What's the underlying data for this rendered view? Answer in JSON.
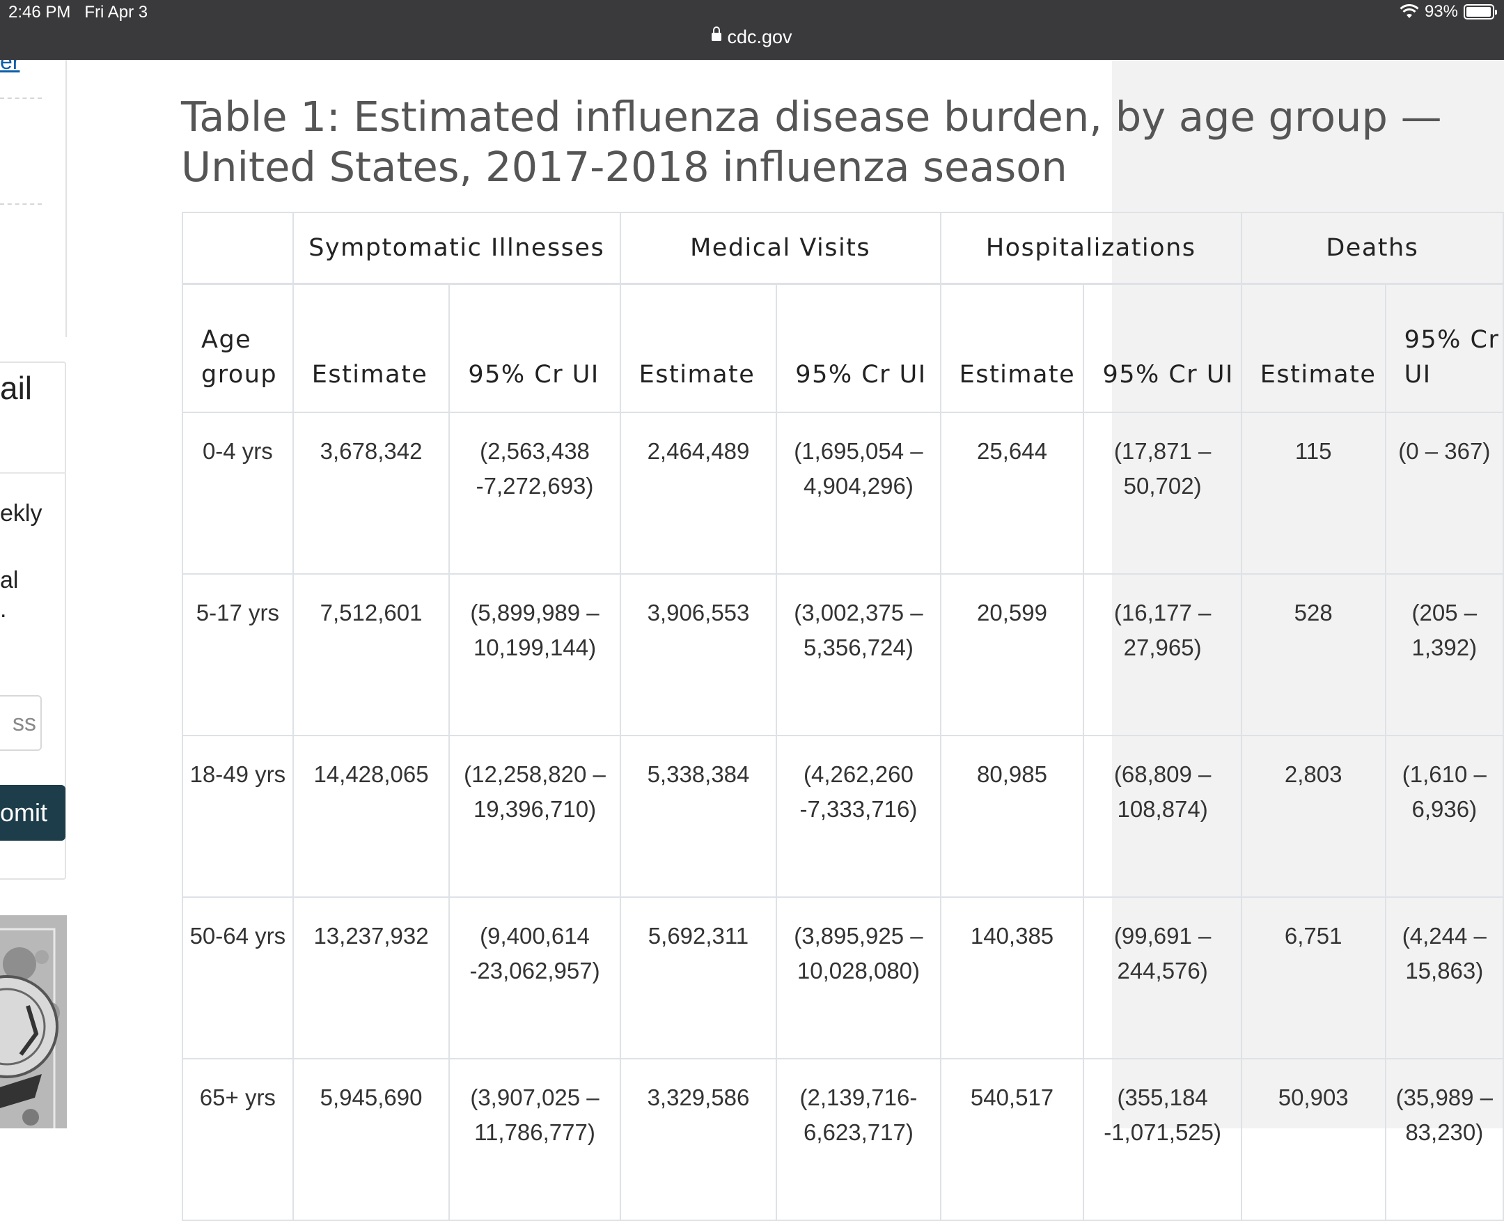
{
  "status_bar": {
    "time": "2:46 PM",
    "date": "Fri Apr 3",
    "battery": "93%",
    "battery_level": 0.93
  },
  "browser": {
    "url": "cdc.gov"
  },
  "sidebar": {
    "link_fragment": "er",
    "email_title_fragment": "ail",
    "text_fragment_1": "ekly",
    "text_fragment_2": "al",
    "text_fragment_3": ".",
    "email_placeholder_fragment": "ss",
    "submit_fragment": "omit"
  },
  "page": {
    "title": "Table 1: Estimated influenza disease burden, by age group — United States, 2017-2018 influenza season"
  },
  "table": {
    "groups": [
      "Symptomatic Illnesses",
      "Medical Visits",
      "Hospitalizations",
      "Deaths"
    ],
    "subheaders": [
      "Age group",
      "Estimate",
      "95% Cr UI",
      "Estimate",
      "95% Cr UI",
      "Estimate",
      "95% Cr UI",
      "Estimate",
      "95% Cr UI"
    ],
    "rows": [
      [
        "0-4 yrs",
        "3,678,342",
        "(2,563,438 -7,272,693)",
        "2,464,489",
        "(1,695,054 – 4,904,296)",
        "25,644",
        "(17,871 – 50,702)",
        "115",
        "(0 – 367)"
      ],
      [
        "5-17 yrs",
        "7,512,601",
        "(5,899,989 – 10,199,144)",
        "3,906,553",
        "(3,002,375 – 5,356,724)",
        "20,599",
        "(16,177 – 27,965)",
        "528",
        "(205 – 1,392)"
      ],
      [
        "18-49 yrs",
        "14,428,065",
        "(12,258,820 – 19,396,710)",
        "5,338,384",
        "(4,262,260 -7,333,716)",
        "80,985",
        "(68,809 – 108,874)",
        "2,803",
        "(1,610 – 6,936)"
      ],
      [
        "50-64 yrs",
        "13,237,932",
        "(9,400,614 -23,062,957)",
        "5,692,311",
        "(3,895,925 – 10,028,080)",
        "140,385",
        "(99,691 – 244,576)",
        "6,751",
        "(4,244 – 15,863)"
      ],
      [
        "65+ yrs",
        "5,945,690",
        "(3,907,025 – 11,786,777)",
        "3,329,586",
        "(2,139,716- 6,623,717)",
        "540,517",
        "(355,184 -1,071,525)",
        "50,903",
        "(35,989 – 83,230)"
      ]
    ]
  }
}
